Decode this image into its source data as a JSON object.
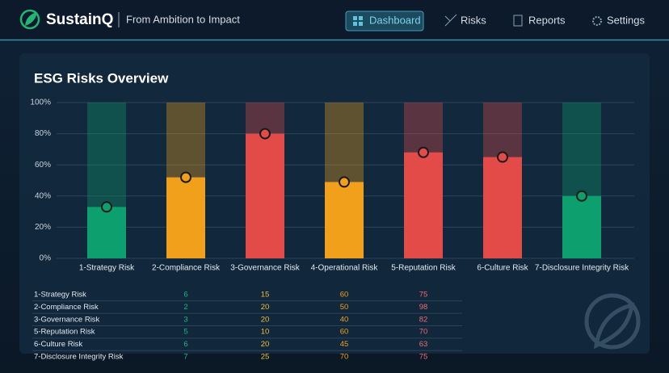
{
  "header": {
    "brand": "SustainQ",
    "tagline": "From Ambition to Impact",
    "nav": [
      "Dashboard",
      "Risks",
      "Reports",
      "Settings"
    ]
  },
  "chart_data": {
    "type": "bar",
    "title": "ESG Risks Overview",
    "categories": [
      "1-Strategy Risk",
      "2-Compliance Risk",
      "3-Governance Risk",
      "4-Operational Risk",
      "5-Reputation Risk",
      "6-Culture Risk",
      "7-Disclosure Integrity Risk"
    ],
    "values": [
      33,
      52,
      80,
      49,
      68,
      65,
      40
    ],
    "marker_values": [
      33,
      52,
      80,
      49,
      68,
      65,
      40
    ],
    "colors": [
      "#0e9f6e",
      "#f0a01a",
      "#e24b48",
      "#f0a01a",
      "#e24b48",
      "#e24b48",
      "#0e9f6e"
    ],
    "ylim": [
      0,
      100
    ],
    "yticks": [
      {
        "value": 0,
        "label": "0%"
      },
      {
        "value": 20,
        "label": "20%"
      },
      {
        "value": 40,
        "label": "40%"
      },
      {
        "value": 60,
        "label": "60%"
      },
      {
        "value": 80,
        "label": "80%"
      },
      {
        "value": 100,
        "label": "100%"
      }
    ],
    "grid": true
  },
  "table": {
    "rows": [
      [
        "1-Strategy Risk",
        6,
        15,
        60,
        75
      ],
      [
        "2-Compliance Risk",
        2,
        20,
        50,
        98
      ],
      [
        "3-Governance Risk",
        3,
        20,
        40,
        82
      ],
      [
        "5-Reputation Risk",
        5,
        10,
        60,
        70
      ],
      [
        "6-Culture Risk",
        6,
        20,
        45,
        63
      ],
      [
        "7-Disclosure Integrity Risk",
        7,
        25,
        70,
        75
      ]
    ]
  }
}
